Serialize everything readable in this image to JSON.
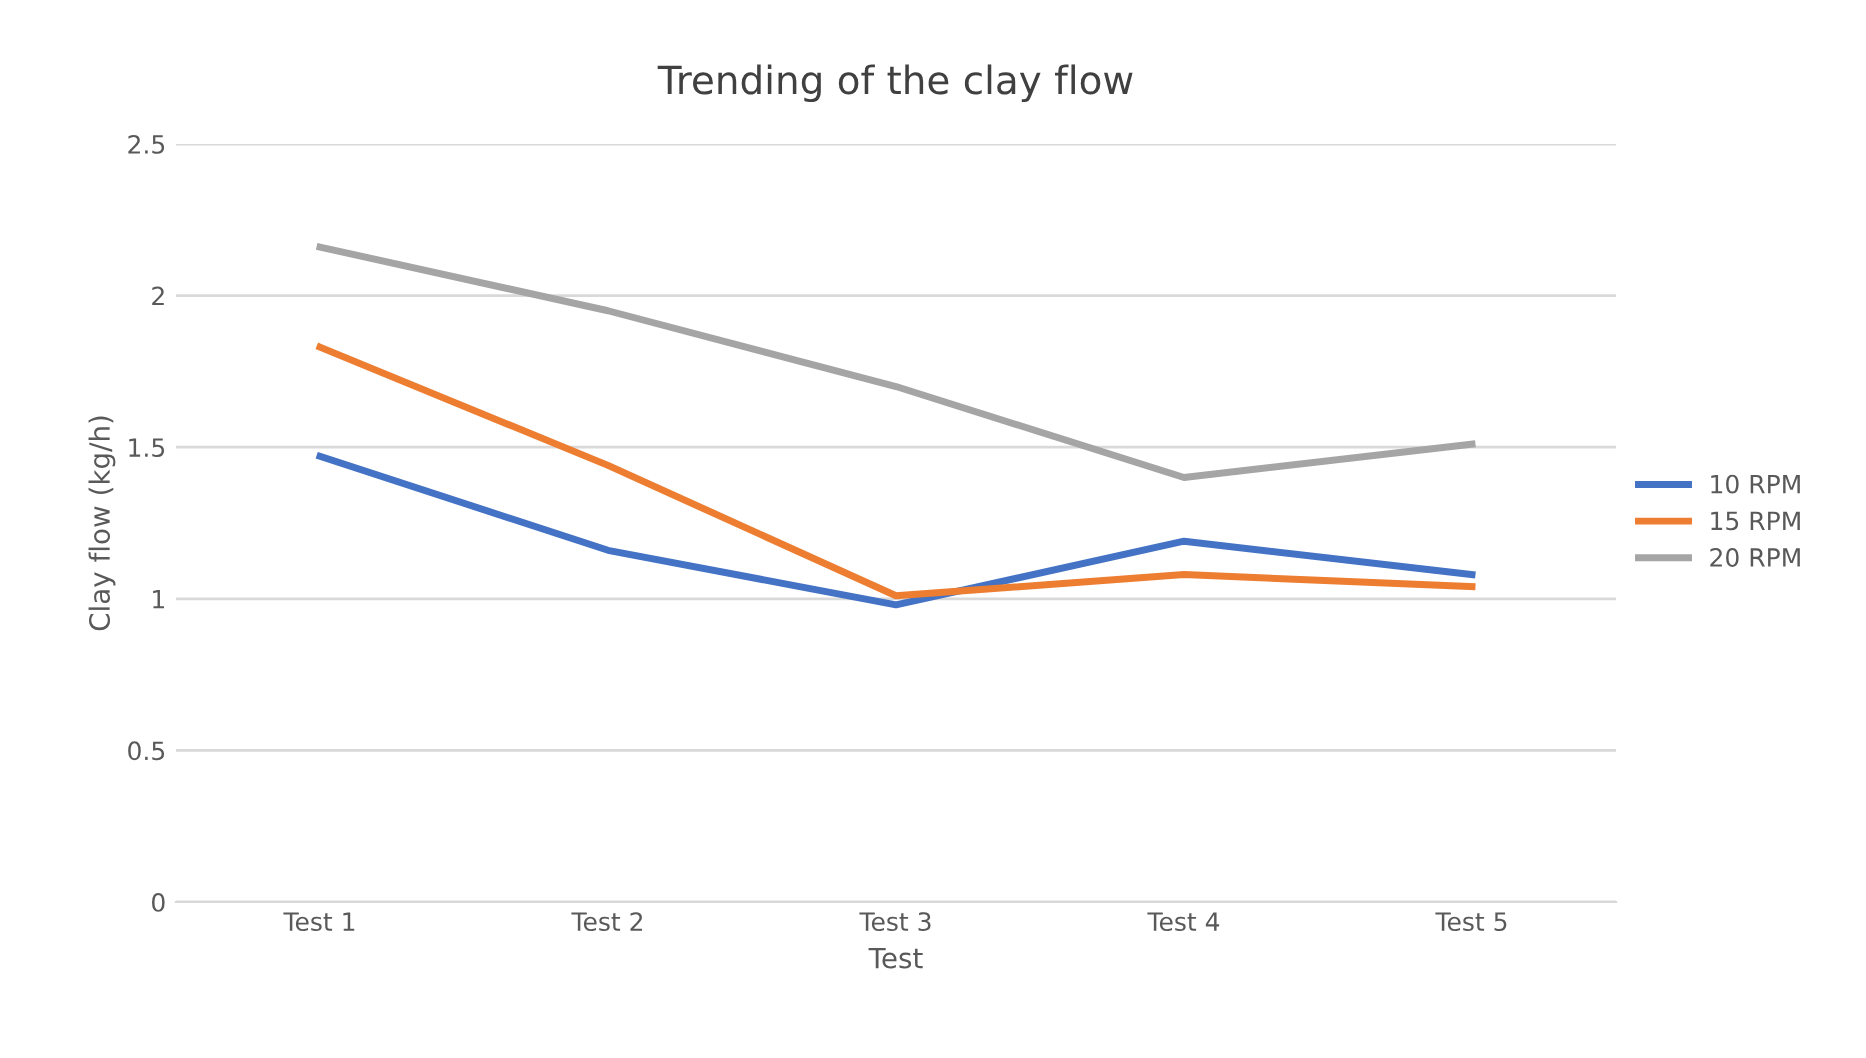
{
  "chart_data": {
    "type": "line",
    "title": "Trending of the clay flow",
    "xlabel": "Test",
    "ylabel": "Clay flow (kg/h)",
    "categories": [
      "Test 1",
      "Test 2",
      "Test 3",
      "Test 4",
      "Test 5"
    ],
    "series": [
      {
        "name": "10 RPM",
        "color": "#4472c4",
        "values": [
          1.47,
          1.16,
          0.98,
          1.19,
          1.08
        ]
      },
      {
        "name": "15 RPM",
        "color": "#ed7d31",
        "values": [
          1.83,
          1.44,
          1.01,
          1.08,
          1.04
        ]
      },
      {
        "name": "20 RPM",
        "color": "#a5a5a5",
        "values": [
          2.16,
          1.95,
          1.7,
          1.4,
          1.51
        ]
      }
    ],
    "ylim": [
      0,
      2.5
    ],
    "yticks": [
      0,
      0.5,
      1,
      1.5,
      2,
      2.5
    ],
    "grid": "y",
    "legend": "right",
    "marker": "none",
    "line_style": "solid"
  }
}
